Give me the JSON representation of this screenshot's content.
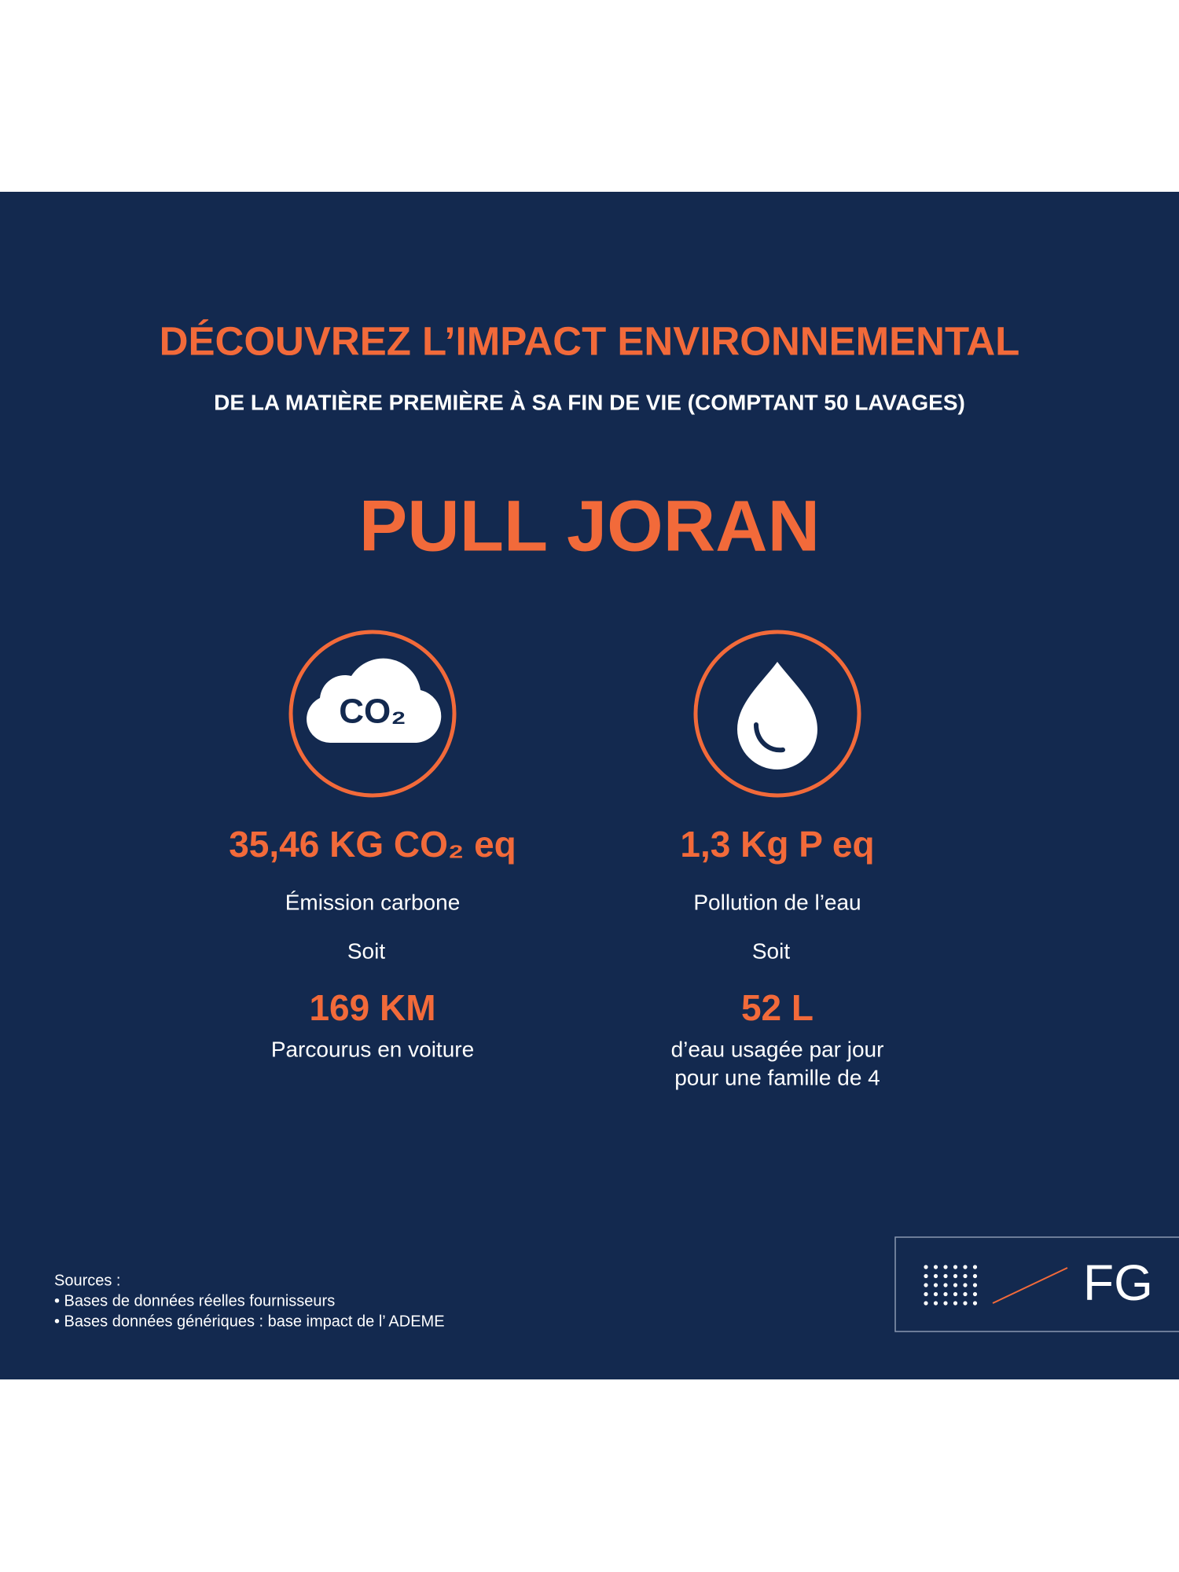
{
  "header": {
    "title": "DÉCOUVREZ L’IMPACT ENVIRONNEMENTAL",
    "subtitle": "DE LA MATIÈRE PREMIÈRE À SA FIN DE VIE (COMPTANT 50 LAVAGES)"
  },
  "product": "PULL JORAN",
  "metrics": [
    {
      "icon_text": "CO₂",
      "value": "35,46 KG CO₂ eq",
      "label": "Émission carbone",
      "connector": "Soit",
      "equivalent": "169 KM",
      "description": [
        "Parcourus en voiture"
      ]
    },
    {
      "value": "1,3 Kg P eq",
      "label": "Pollution de l’eau",
      "connector": "Soit",
      "equivalent": "52 L",
      "description": [
        "d’eau usagée par jour",
        "pour une famille de 4"
      ]
    }
  ],
  "sources": {
    "title": "Sources :",
    "items": [
      "• Bases de données réelles fournisseurs",
      "• Bases données génériques : base impact de l’ ADEME"
    ]
  },
  "logo": {
    "text": "FG"
  }
}
